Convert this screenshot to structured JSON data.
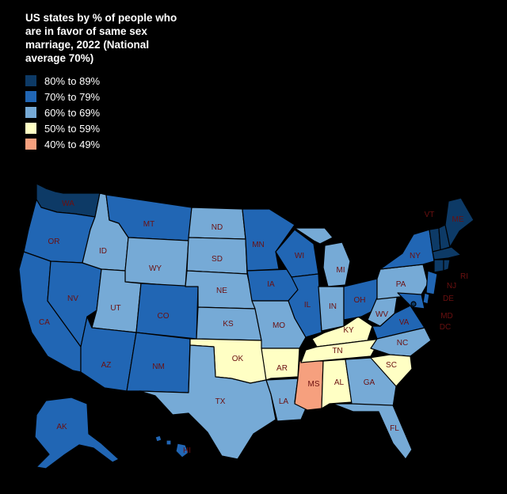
{
  "title": "US states by % of people who are in favor of same sex marriage, 2022 (National average 70%)",
  "legend": [
    {
      "label": "80% to 89%",
      "color": "#0d3a66"
    },
    {
      "label": "70% to 79%",
      "color": "#2166b4"
    },
    {
      "label": "60% to 69%",
      "color": "#76aad6"
    },
    {
      "label": "50% to 59%",
      "color": "#ffffc4"
    },
    {
      "label": "40% to 49%",
      "color": "#f6a07e"
    }
  ],
  "states": {
    "WA": 0,
    "OR": 1,
    "CA": 1,
    "NV": 1,
    "ID": 2,
    "MT": 1,
    "WY": 2,
    "UT": 2,
    "AZ": 1,
    "CO": 1,
    "NM": 1,
    "ND": 2,
    "SD": 2,
    "NE": 2,
    "KS": 2,
    "OK": 3,
    "TX": 2,
    "MN": 1,
    "IA": 1,
    "MO": 2,
    "AR": 3,
    "LA": 2,
    "WI": 1,
    "IL": 1,
    "MS": 4,
    "MI": 2,
    "IN": 2,
    "KY": 3,
    "TN": 3,
    "AL": 3,
    "OH": 1,
    "WV": 2,
    "VA": 1,
    "NC": 2,
    "SC": 3,
    "GA": 2,
    "FL": 2,
    "PA": 2,
    "NY": 1,
    "ME": 0,
    "VT": 0,
    "NH": 0,
    "MA": 0,
    "RI": 0,
    "CT": 0,
    "NJ": 1,
    "DE": 1,
    "MD": 1,
    "DC": 0,
    "AK": 1,
    "HI": 1
  }
}
